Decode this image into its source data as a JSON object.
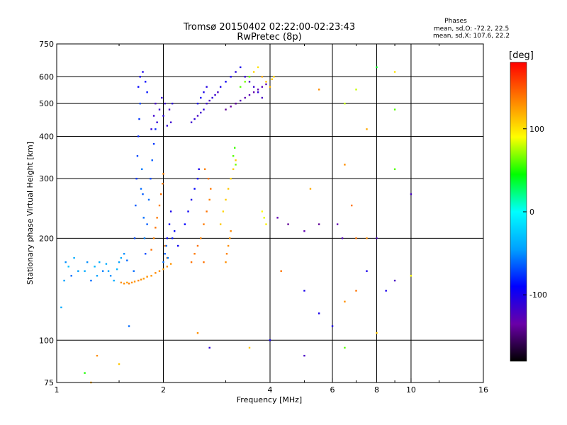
{
  "header": {
    "title_line1": "Tromsø 20150402 02:22:00-02:23:43",
    "title_line2": "RwPretec (8p)",
    "stats_title": "Phases",
    "stats_o": "mean, sd,O: -72.2, 22.5",
    "stats_x": "mean, sd,X: 107.6, 22.2"
  },
  "chart_data": {
    "type": "scatter",
    "xlabel": "Frequency [MHz]",
    "ylabel": "Stationary phase Virtual Height [km]",
    "x_scale": "log",
    "y_scale": "log",
    "xlim": [
      1,
      16
    ],
    "ylim": [
      75,
      750
    ],
    "x_ticks": [
      1,
      2,
      4,
      6,
      8,
      10,
      16
    ],
    "x_minor_ticks": [
      1.5,
      3,
      5,
      7,
      9,
      12
    ],
    "y_ticks": [
      75,
      100,
      200,
      300,
      400,
      500,
      600,
      750
    ],
    "grid": true,
    "colorbar": {
      "label": "[deg]",
      "range": [
        -180,
        180
      ],
      "ticks": [
        100,
        0,
        -100
      ],
      "colors": [
        "#000000",
        "#6a00a8",
        "#0000ff",
        "#00a0ff",
        "#00ffff",
        "#00ff00",
        "#ffff00",
        "#ff8000",
        "#ff0000"
      ]
    },
    "points": [
      [
        1.03,
        125,
        -40
      ],
      [
        1.05,
        150,
        -45
      ],
      [
        1.06,
        170,
        -50
      ],
      [
        1.08,
        165,
        -30
      ],
      [
        1.1,
        155,
        -60
      ],
      [
        1.12,
        175,
        -40
      ],
      [
        1.15,
        160,
        -45
      ],
      [
        1.2,
        160,
        -40
      ],
      [
        1.22,
        170,
        -50
      ],
      [
        1.25,
        150,
        -60
      ],
      [
        1.28,
        165,
        -35
      ],
      [
        1.3,
        155,
        -45
      ],
      [
        1.32,
        170,
        -40
      ],
      [
        1.35,
        160,
        -55
      ],
      [
        1.38,
        168,
        -40
      ],
      [
        1.4,
        160,
        -45
      ],
      [
        1.42,
        155,
        -50
      ],
      [
        1.45,
        150,
        -40
      ],
      [
        1.48,
        162,
        -35
      ],
      [
        1.5,
        170,
        -45
      ],
      [
        1.52,
        175,
        -40
      ],
      [
        1.55,
        180,
        -50
      ],
      [
        1.58,
        172,
        -60
      ],
      [
        1.52,
        148,
        130
      ],
      [
        1.55,
        147,
        130
      ],
      [
        1.58,
        148,
        125
      ],
      [
        1.6,
        147,
        135
      ],
      [
        1.63,
        148,
        130
      ],
      [
        1.66,
        149,
        128
      ],
      [
        1.7,
        150,
        132
      ],
      [
        1.73,
        151,
        130
      ],
      [
        1.76,
        152,
        125
      ],
      [
        1.8,
        154,
        130
      ],
      [
        1.85,
        155,
        128
      ],
      [
        1.9,
        158,
        132
      ],
      [
        1.95,
        160,
        130
      ],
      [
        2.0,
        162,
        125
      ],
      [
        2.05,
        165,
        130
      ],
      [
        2.1,
        168,
        128
      ],
      [
        1.65,
        160,
        -60
      ],
      [
        1.66,
        200,
        -70
      ],
      [
        1.67,
        250,
        -65
      ],
      [
        1.68,
        300,
        -75
      ],
      [
        1.69,
        350,
        -70
      ],
      [
        1.7,
        400,
        -80
      ],
      [
        1.71,
        450,
        -75
      ],
      [
        1.72,
        500,
        -70
      ],
      [
        1.73,
        280,
        -60
      ],
      [
        1.74,
        320,
        -55
      ],
      [
        1.75,
        270,
        -65
      ],
      [
        1.76,
        230,
        -60
      ],
      [
        1.77,
        200,
        -55
      ],
      [
        1.78,
        180,
        -70
      ],
      [
        1.8,
        220,
        -65
      ],
      [
        1.82,
        260,
        -60
      ],
      [
        1.84,
        300,
        -70
      ],
      [
        1.86,
        340,
        -65
      ],
      [
        1.88,
        380,
        -75
      ],
      [
        1.9,
        420,
        -80
      ],
      [
        1.7,
        560,
        -90
      ],
      [
        1.72,
        600,
        -95
      ],
      [
        1.75,
        620,
        -100
      ],
      [
        1.78,
        580,
        -90
      ],
      [
        1.8,
        540,
        -85
      ],
      [
        1.85,
        420,
        -110
      ],
      [
        1.88,
        460,
        -115
      ],
      [
        1.9,
        500,
        -120
      ],
      [
        1.92,
        440,
        -110
      ],
      [
        1.95,
        480,
        -115
      ],
      [
        1.98,
        520,
        -110
      ],
      [
        2.0,
        460,
        -105
      ],
      [
        2.02,
        500,
        -115
      ],
      [
        2.05,
        430,
        -110
      ],
      [
        2.08,
        480,
        -120
      ],
      [
        2.1,
        440,
        -115
      ],
      [
        2.12,
        500,
        -110
      ],
      [
        1.85,
        185,
        140
      ],
      [
        1.88,
        200,
        135
      ],
      [
        1.9,
        215,
        140
      ],
      [
        1.92,
        230,
        138
      ],
      [
        1.95,
        250,
        135
      ],
      [
        1.97,
        270,
        140
      ],
      [
        1.99,
        290,
        138
      ],
      [
        2.0,
        310,
        135
      ],
      [
        2.02,
        190,
        140
      ],
      [
        2.05,
        175,
        138
      ],
      [
        2.05,
        200,
        -90
      ],
      [
        2.08,
        220,
        -95
      ],
      [
        2.1,
        240,
        -100
      ],
      [
        2.12,
        200,
        -85
      ],
      [
        2.15,
        210,
        -90
      ],
      [
        2.2,
        190,
        -95
      ],
      [
        2.0,
        170,
        -60
      ],
      [
        2.02,
        180,
        -65
      ],
      [
        2.04,
        190,
        -60
      ],
      [
        2.06,
        175,
        -55
      ],
      [
        2.4,
        440,
        -115
      ],
      [
        2.45,
        450,
        -110
      ],
      [
        2.5,
        460,
        -120
      ],
      [
        2.55,
        470,
        -115
      ],
      [
        2.6,
        480,
        -110
      ],
      [
        2.65,
        500,
        -115
      ],
      [
        2.7,
        510,
        -120
      ],
      [
        2.75,
        520,
        -110
      ],
      [
        2.8,
        530,
        -115
      ],
      [
        2.85,
        540,
        -120
      ],
      [
        2.5,
        500,
        -100
      ],
      [
        2.55,
        520,
        -95
      ],
      [
        2.6,
        540,
        -100
      ],
      [
        2.65,
        560,
        -105
      ],
      [
        2.9,
        560,
        -100
      ],
      [
        3.0,
        580,
        -95
      ],
      [
        3.1,
        600,
        -100
      ],
      [
        3.2,
        620,
        -105
      ],
      [
        3.3,
        640,
        -100
      ],
      [
        3.4,
        600,
        -110
      ],
      [
        3.5,
        580,
        -120
      ],
      [
        3.6,
        560,
        -115
      ],
      [
        3.7,
        540,
        -110
      ],
      [
        3.8,
        520,
        -120
      ],
      [
        3.2,
        500,
        -130
      ],
      [
        3.3,
        510,
        -125
      ],
      [
        3.4,
        520,
        -130
      ],
      [
        3.5,
        530,
        -128
      ],
      [
        3.6,
        540,
        -132
      ],
      [
        3.7,
        550,
        -130
      ],
      [
        3.8,
        560,
        -128
      ],
      [
        3.9,
        570,
        -130
      ],
      [
        3.0,
        480,
        -140
      ],
      [
        3.1,
        490,
        -135
      ],
      [
        3.2,
        500,
        -140
      ],
      [
        3.5,
        600,
        110
      ],
      [
        3.6,
        620,
        105
      ],
      [
        3.7,
        640,
        100
      ],
      [
        3.8,
        600,
        120
      ],
      [
        3.9,
        580,
        110
      ],
      [
        4.0,
        560,
        115
      ],
      [
        4.05,
        590,
        110
      ],
      [
        4.1,
        600,
        105
      ],
      [
        3.3,
        560,
        60
      ],
      [
        3.4,
        580,
        65
      ],
      [
        3.5,
        600,
        60
      ],
      [
        2.4,
        170,
        140
      ],
      [
        2.45,
        180,
        138
      ],
      [
        2.5,
        190,
        140
      ],
      [
        2.55,
        200,
        135
      ],
      [
        2.6,
        220,
        138
      ],
      [
        2.65,
        240,
        140
      ],
      [
        2.7,
        260,
        135
      ],
      [
        2.72,
        280,
        138
      ],
      [
        2.68,
        300,
        140
      ],
      [
        2.62,
        320,
        135
      ],
      [
        2.6,
        170,
        140
      ],
      [
        2.3,
        220,
        -90
      ],
      [
        2.35,
        240,
        -95
      ],
      [
        2.4,
        260,
        -100
      ],
      [
        2.45,
        280,
        -90
      ],
      [
        2.5,
        300,
        -95
      ],
      [
        2.52,
        320,
        -100
      ],
      [
        2.9,
        220,
        110
      ],
      [
        2.95,
        240,
        105
      ],
      [
        3.0,
        260,
        108
      ],
      [
        3.05,
        280,
        110
      ],
      [
        3.1,
        300,
        105
      ],
      [
        3.15,
        320,
        108
      ],
      [
        3.2,
        340,
        110
      ],
      [
        3.0,
        170,
        130
      ],
      [
        3.02,
        180,
        135
      ],
      [
        3.05,
        190,
        130
      ],
      [
        3.08,
        200,
        128
      ],
      [
        3.1,
        210,
        132
      ],
      [
        3.15,
        350,
        60
      ],
      [
        3.18,
        370,
        55
      ],
      [
        3.2,
        330,
        65
      ],
      [
        3.8,
        240,
        90
      ],
      [
        3.85,
        230,
        85
      ],
      [
        3.9,
        220,
        95
      ],
      [
        4.2,
        230,
        -130
      ],
      [
        4.5,
        220,
        -140
      ],
      [
        5.0,
        210,
        -130
      ],
      [
        5.5,
        220,
        -140
      ],
      [
        6.2,
        220,
        -130
      ],
      [
        6.4,
        200,
        -125
      ],
      [
        7.0,
        200,
        140
      ],
      [
        7.5,
        200,
        130
      ],
      [
        8.0,
        200,
        -120
      ],
      [
        5.2,
        280,
        120
      ],
      [
        6.5,
        330,
        130
      ],
      [
        6.8,
        250,
        140
      ],
      [
        9.0,
        320,
        60
      ],
      [
        10.0,
        270,
        -120
      ],
      [
        5.5,
        550,
        130
      ],
      [
        6.5,
        500,
        80
      ],
      [
        7.0,
        550,
        80
      ],
      [
        7.5,
        420,
        120
      ],
      [
        8.0,
        640,
        40
      ],
      [
        9.0,
        620,
        100
      ],
      [
        9.0,
        480,
        60
      ],
      [
        4.0,
        100,
        -100
      ],
      [
        4.3,
        160,
        140
      ],
      [
        5.0,
        140,
        -100
      ],
      [
        5.5,
        120,
        -100
      ],
      [
        6.0,
        110,
        -100
      ],
      [
        6.5,
        130,
        130
      ],
      [
        7.0,
        140,
        140
      ],
      [
        7.5,
        160,
        -100
      ],
      [
        8.0,
        105,
        110
      ],
      [
        8.5,
        140,
        -100
      ],
      [
        9.0,
        150,
        -120
      ],
      [
        10.0,
        155,
        90
      ],
      [
        1.3,
        90,
        130
      ],
      [
        1.5,
        85,
        110
      ],
      [
        2.5,
        105,
        130
      ],
      [
        2.7,
        95,
        -110
      ],
      [
        3.5,
        95,
        110
      ],
      [
        5.0,
        90,
        -120
      ],
      [
        6.5,
        95,
        60
      ],
      [
        1.25,
        75,
        120
      ],
      [
        1.6,
        110,
        -60
      ],
      [
        1.2,
        80,
        50
      ]
    ]
  }
}
